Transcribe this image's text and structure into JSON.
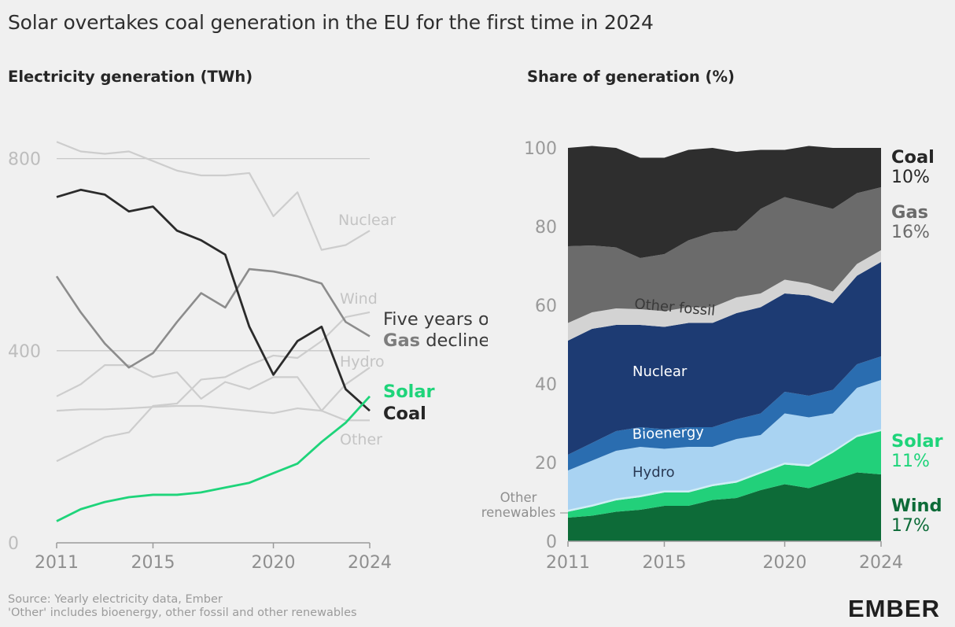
{
  "title": "Solar overtakes coal generation in the EU for the first time in 2024",
  "left_title": "Electricity generation (TWh)",
  "right_title": "Share of generation (%)",
  "source": "Source: Yearly electricity data, Ember",
  "other_note": "'Other' includes bioenergy, other fossil and other renewables",
  "logo": "EMBER",
  "colors": {
    "coal": "#2b2b2b",
    "gas": "#8c8c8c",
    "solar": "#1ed47a",
    "grey_line": "#cdcdcd",
    "area_coal": "#2e2e2e",
    "area_gas": "#6b6b6b",
    "area_other_fossil": "#d3d3d3",
    "area_nuclear": "#1d3b73",
    "area_bioenergy": "#2a6db0",
    "area_hydro": "#a9d3f2",
    "area_other_renewables": "#cfeef5",
    "area_solar": "#22d07a",
    "area_wind": "#0d6b38"
  },
  "chart_data": [
    {
      "type": "line",
      "title": "Electricity generation (TWh)",
      "x": [
        2011,
        2012,
        2013,
        2014,
        2015,
        2016,
        2017,
        2018,
        2019,
        2020,
        2021,
        2022,
        2023,
        2024
      ],
      "xticks": [
        "2011",
        "2015",
        "2020",
        "2024"
      ],
      "yticks": [
        "0",
        "400",
        "800"
      ],
      "ylim": [
        0,
        860
      ],
      "grid": "horizontal",
      "annotation": {
        "line1": "Five years of",
        "line2_bold": "Gas",
        "line2_rest": " decline"
      },
      "series": [
        {
          "name": "Nuclear",
          "style": "grey",
          "values": [
            835,
            815,
            810,
            815,
            795,
            775,
            765,
            765,
            770,
            680,
            730,
            610,
            620,
            650
          ]
        },
        {
          "name": "Wind",
          "style": "grey",
          "values": [
            170,
            195,
            220,
            230,
            285,
            290,
            340,
            345,
            370,
            390,
            385,
            420,
            470,
            480
          ]
        },
        {
          "name": "Hydro",
          "style": "grey",
          "values": [
            305,
            330,
            370,
            370,
            345,
            355,
            300,
            335,
            320,
            345,
            345,
            275,
            330,
            365
          ]
        },
        {
          "name": "Other",
          "style": "grey",
          "values": [
            275,
            278,
            278,
            280,
            283,
            285,
            285,
            280,
            275,
            270,
            280,
            275,
            255,
            255
          ]
        },
        {
          "name": "Gas",
          "style": "gas",
          "values": [
            555,
            480,
            415,
            365,
            395,
            460,
            520,
            490,
            570,
            565,
            555,
            540,
            460,
            430
          ]
        },
        {
          "name": "Coal",
          "style": "coal",
          "values": [
            720,
            735,
            725,
            690,
            700,
            650,
            630,
            600,
            450,
            350,
            420,
            450,
            320,
            275
          ]
        },
        {
          "name": "Solar",
          "style": "solar",
          "values": [
            45,
            70,
            85,
            95,
            100,
            100,
            105,
            115,
            125,
            145,
            165,
            210,
            250,
            305
          ]
        }
      ],
      "end_labels": [
        "Solar",
        "Coal"
      ]
    },
    {
      "type": "area",
      "title": "Share of generation (%)",
      "x": [
        2011,
        2012,
        2013,
        2014,
        2015,
        2016,
        2017,
        2018,
        2019,
        2020,
        2021,
        2022,
        2023,
        2024
      ],
      "xticks": [
        "2011",
        "2015",
        "2020",
        "2024"
      ],
      "yticks": [
        "0",
        "20",
        "40",
        "60",
        "80",
        "100"
      ],
      "ylim": [
        0,
        100
      ],
      "stacked": true,
      "series": [
        {
          "name": "Wind",
          "values": [
            6,
            6.5,
            7.5,
            8,
            9,
            9,
            10.5,
            11,
            13,
            14.5,
            13.5,
            15.5,
            17.5,
            17
          ]
        },
        {
          "name": "Solar",
          "values": [
            1.5,
            2.3,
            2.9,
            3.2,
            3.4,
            3.4,
            3.5,
            3.9,
            4.2,
            5,
            5.5,
            7,
            9,
            11
          ]
        },
        {
          "name": "Other renewables",
          "values": [
            0.5,
            0.5,
            0.5,
            0.5,
            0.5,
            0.5,
            0.5,
            0.5,
            0.5,
            0.5,
            0.5,
            0.5,
            0.5,
            0.5
          ]
        },
        {
          "name": "Hydro",
          "values": [
            10,
            11.2,
            12.1,
            12.3,
            10.6,
            11.1,
            9.5,
            10.6,
            9.3,
            12.5,
            12,
            9.5,
            12,
            12.5
          ]
        },
        {
          "name": "Bioenergy",
          "values": [
            4,
            4.5,
            5,
            5,
            5,
            5,
            5,
            5,
            5.5,
            5.5,
            5.5,
            6,
            6,
            6
          ]
        },
        {
          "name": "Nuclear",
          "values": [
            29,
            29,
            27,
            26,
            26,
            26.5,
            26.5,
            27,
            27,
            25,
            25.5,
            22,
            22.5,
            24
          ]
        },
        {
          "name": "Other fossil",
          "values": [
            4.5,
            4.2,
            4.2,
            4,
            4,
            4,
            4,
            4,
            3.5,
            3.5,
            3,
            3,
            3,
            3
          ]
        },
        {
          "name": "Gas",
          "values": [
            19.5,
            17,
            15.5,
            13,
            14.5,
            17,
            19,
            17,
            21.5,
            21,
            20.5,
            21,
            18,
            16
          ]
        },
        {
          "name": "Coal",
          "values": [
            25,
            25.3,
            25.3,
            25.5,
            24.5,
            23,
            21.5,
            20,
            15,
            12,
            14.5,
            15.5,
            11.5,
            10
          ]
        }
      ],
      "inner_labels": [
        "Other fossil",
        "Nuclear",
        "Bioenergy",
        "Hydro"
      ],
      "side_label": "Other\nrenewables",
      "end_labels": [
        {
          "name": "Coal",
          "value": "10%",
          "color": "#262626"
        },
        {
          "name": "Gas",
          "value": "16%",
          "color": "#6b6b6b"
        },
        {
          "name": "Solar",
          "value": "11%",
          "color": "#1ed47a"
        },
        {
          "name": "Wind",
          "value": "17%",
          "color": "#0d6b38"
        }
      ]
    }
  ]
}
